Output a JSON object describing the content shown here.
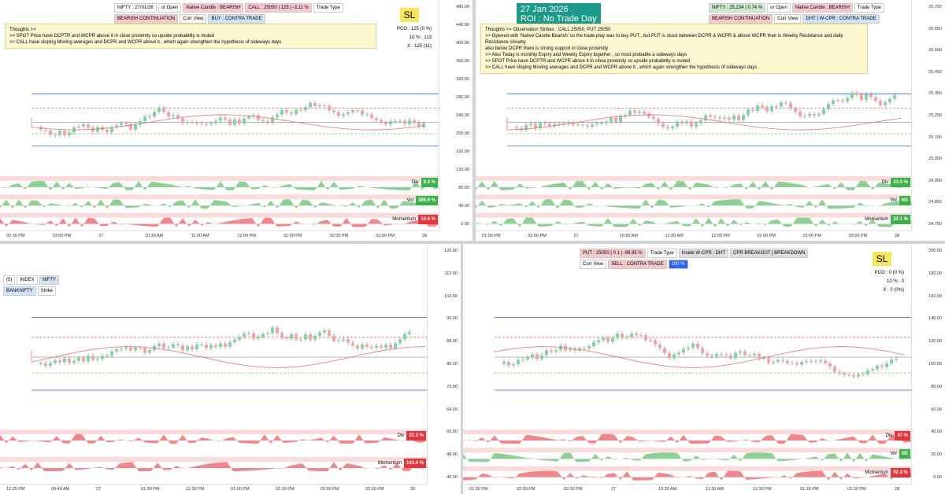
{
  "panels": [
    {
      "title_box": null,
      "chips": [
        {
          "text": "NIFTY : 27/01/26",
          "bg": "#ffffff"
        },
        {
          "text": "or Open",
          "bg": "#ffffff"
        },
        {
          "text": "Native Candle : BEARISH",
          "bg": "#f8c8cc"
        },
        {
          "text": "CALL : 25050 | 125 | -3.11 %",
          "bg": "#f8c8cc"
        },
        {
          "text": "Trade Type",
          "bg": "#ffffff"
        },
        {
          "text": "BEARISH CONTINUATION",
          "bg": "#f8c8cc"
        },
        {
          "text": "Curr View",
          "bg": "#ffffff"
        },
        {
          "text": "BUY : CONTRA TRADE",
          "bg": "#cfe4fb"
        }
      ],
      "sl": "SL",
      "stats": [
        "PCO : 125 (0 %)",
        "10 % : 113",
        "X : 125 (11)"
      ],
      "thoughts": [
        "Thoughts >>",
        ">> SPOT Price have DCPTR and WCPR above it in close proximity so upside probability is muted",
        ">> CALL have sloping Moving averages and DCPR and WCPR above it , which again strengthen the hypothesis of sideways days"
      ],
      "axis": [
        "480.00",
        "440.00",
        "400.00",
        "360.00",
        "320.00",
        "280.00",
        "240.00",
        "200.00",
        "160.00",
        "120.00",
        "80.00",
        "40.00",
        "0.00"
      ],
      "indicators": [
        {
          "label": "Div",
          "value": "9.3 %",
          "color": "#3cb34a"
        },
        {
          "label": "Vol",
          "value": "286.9 %",
          "color": "#3cb34a"
        },
        {
          "label": "Momentum",
          "value": "13.9 %",
          "color": "#e8333b"
        }
      ],
      "time": [
        "02:30 PM",
        "03:00 PM",
        "27",
        "10:30 AM",
        "11:00 AM",
        "12:00 PM",
        "01:00 PM",
        "02:00 PM",
        "03:00 PM",
        "28"
      ]
    },
    {
      "title_box": [
        "27 Jan 2026",
        "ROI : No Trade Day"
      ],
      "chips": [
        {
          "text": "NIFTY : 25,234 | 0.74 %",
          "bg": "#cdeccd"
        },
        {
          "text": "or Open",
          "bg": "#ffffff"
        },
        {
          "text": "Native Candle : BEARISH",
          "bg": "#f8c8cc"
        },
        {
          "text": "Trade Type",
          "bg": "#ffffff"
        },
        {
          "text": "BEARISH CONTINUATION",
          "bg": "#f8c8cc"
        },
        {
          "text": "Curr View",
          "bg": "#ffffff"
        },
        {
          "text": "DHT | W-CPR : CONTRA TRADE",
          "bg": "#cfe4fb"
        }
      ],
      "sl": null,
      "stats": [],
      "thoughts": [
        "Thoughts >>    Observation Strikes : CALL 25050, PUT 25050",
        ">> Opened with 'Native Candle Bearish' so the trade play was to buy PUT , but PUT is stuck between DCPR & WCPR & above WCPR their is Weekly Resistance and daily Resistance closeby",
        "also below DCPR there is strong support in close proximity",
        ">> Also Today is monthly Expiry and Weekly Expiry together , so most probable a sideways days",
        ">> SPOT Price have DCPTR and WCPR above it in close proximity so upside probability is muted",
        ">> CALL have sloping Moving averages and DCPR and WCPR above it , which again strengthen the hypothesis of sideways days"
      ],
      "axis": [
        "25,750",
        "25,650",
        "25,550",
        "25,450",
        "25,350",
        "25,250",
        "25,150",
        "25,050",
        "24,950",
        "24,850",
        "24,750"
      ],
      "indicators": [
        {
          "label": "Div",
          "value": "13.2 %",
          "color": "#3cb34a"
        },
        {
          "label": "Vol",
          "value": "NS",
          "color": "#3cb34a"
        },
        {
          "label": "Momentum",
          "value": "22.1 %",
          "color": "#3cb34a"
        }
      ],
      "time": [
        "01:00 PM",
        "02:00 PM",
        "27",
        "10:30 AM",
        "11:00 AM",
        "12:00 PM",
        "01:00 PM",
        "02:00 PM",
        "03:00 PM",
        "28"
      ]
    },
    {
      "title_box": null,
      "chips": [
        {
          "text": "(5)",
          "bg": "#ffffff"
        },
        {
          "text": "INDEX",
          "bg": "#ffffff"
        },
        {
          "text": "NIFTY",
          "bg": "#cfe4fb"
        },
        {
          "text": "BANKNIFTY",
          "bg": "#cfe4fb"
        },
        {
          "text": "Strike",
          "bg": "#ffffff"
        }
      ],
      "sl": null,
      "stats": [],
      "thoughts": [],
      "axis": [
        "120.00",
        "112.00",
        "104.00",
        "96.00",
        "88.00",
        "80.00",
        "72.00",
        "64.00",
        "56.00",
        "48.00",
        "40.00"
      ],
      "indicators": [
        {
          "label": "Div",
          "value": "32.3 %",
          "color": "#e8333b"
        },
        {
          "label": "Momentum",
          "value": "143.4 %",
          "color": "#e8333b"
        }
      ],
      "time": [
        "12:25 PM",
        "09:40 AM",
        "27",
        "01:00 PM",
        "12:30 PM",
        "01:00 PM",
        "01:30 PM",
        "02:00 PM",
        "02:30 PM",
        "28"
      ]
    },
    {
      "title_box": null,
      "chips": [
        {
          "text": "PUT : 25050 | 0.1 | -99.95 %",
          "bg": "#f8c8cc"
        },
        {
          "text": "Trade Type",
          "bg": "#ffffff"
        },
        {
          "text": "Inside W-CPR : DHT",
          "bg": "#dddddd"
        },
        {
          "text": "CPR BREAKOUT | BREAKDOWN",
          "bg": "#dddddd"
        },
        {
          "text": "Curr View",
          "bg": "#ffffff"
        },
        {
          "text": "SELL : CONTRA TRADE",
          "bg": "#f8c8cc"
        },
        {
          "text": "100 %",
          "bg": "#2962ff"
        }
      ],
      "sl": "SL",
      "stats": [
        "PCO : 0 (0 %)",
        "10 % : 0",
        "X : 0 (0%)"
      ],
      "thoughts": [],
      "axis": [
        "200.00",
        "180.00",
        "160.00",
        "140.00",
        "120.00",
        "100.00",
        "80.00",
        "60.00",
        "40.00",
        "20.00",
        "0.00"
      ],
      "indicators": [
        {
          "label": "Div",
          "value": "47 %",
          "color": "#e8333b"
        },
        {
          "label": "Vol",
          "value": "NE",
          "color": "#3cb34a"
        },
        {
          "label": "Momentum",
          "value": "92.3 %",
          "color": "#e8333b"
        }
      ],
      "time": [
        "01:30 PM",
        "02:00 PM",
        "02:30 PM",
        "27",
        "10:30 AM",
        "11:30 AM",
        "12:30 PM",
        "01:30 PM",
        "02:30 PM",
        "28"
      ]
    }
  ]
}
